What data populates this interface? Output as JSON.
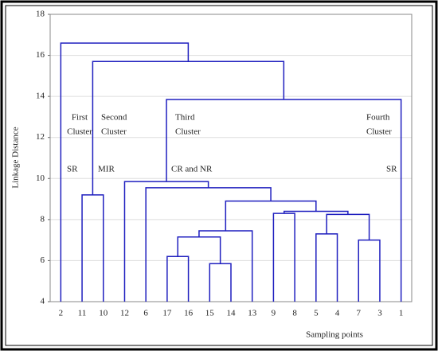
{
  "chart_data": {
    "type": "dendrogram",
    "xlabel": "Sampling points",
    "ylabel": "Linkage Distance",
    "ylim": [
      4,
      18
    ],
    "yticks": [
      4,
      6,
      8,
      10,
      12,
      14,
      16,
      18
    ],
    "grid": true,
    "color": "#1f1fbf",
    "tree": {
      "height": 16.6,
      "children": [
        "2",
        {
          "height": 15.7,
          "children": [
            {
              "height": 9.2,
              "children": [
                "11",
                "10"
              ]
            },
            {
              "height": 13.85,
              "children": [
                {
                  "height": 9.85,
                  "children": [
                    "12",
                    {
                      "height": 9.55,
                      "children": [
                        "6",
                        {
                          "height": 8.9,
                          "children": [
                            {
                              "height": 7.45,
                              "children": [
                                {
                                  "height": 7.15,
                                  "children": [
                                    {
                                      "height": 6.2,
                                      "children": [
                                        "17",
                                        "16"
                                      ]
                                    },
                                    {
                                      "height": 5.85,
                                      "children": [
                                        "15",
                                        "14"
                                      ]
                                    }
                                  ]
                                },
                                "13"
                              ]
                            },
                            {
                              "height": 8.4,
                              "children": [
                                {
                                  "height": 8.3,
                                  "children": [
                                    "9",
                                    "8"
                                  ]
                                },
                                {
                                  "height": 8.25,
                                  "children": [
                                    {
                                      "height": 7.3,
                                      "children": [
                                        "5",
                                        "4"
                                      ]
                                    },
                                    {
                                      "height": 7.0,
                                      "children": [
                                        "7",
                                        "3"
                                      ]
                                    }
                                  ]
                                }
                              ]
                            }
                          ]
                        }
                      ]
                    }
                  ]
                },
                "1"
              ]
            }
          ]
        }
      ]
    },
    "annotations": [
      {
        "lines": [
          "First",
          "Cluster"
        ]
      },
      {
        "lines": [
          "Second",
          "Cluster"
        ]
      },
      {
        "lines": [
          "Third",
          "Cluster"
        ]
      },
      {
        "lines": [
          "Fourth",
          "Cluster"
        ]
      },
      {
        "lines": [
          "SR"
        ]
      },
      {
        "lines": [
          "MIR"
        ]
      },
      {
        "lines": [
          "CR and NR"
        ]
      },
      {
        "lines": [
          "SR"
        ]
      }
    ]
  }
}
